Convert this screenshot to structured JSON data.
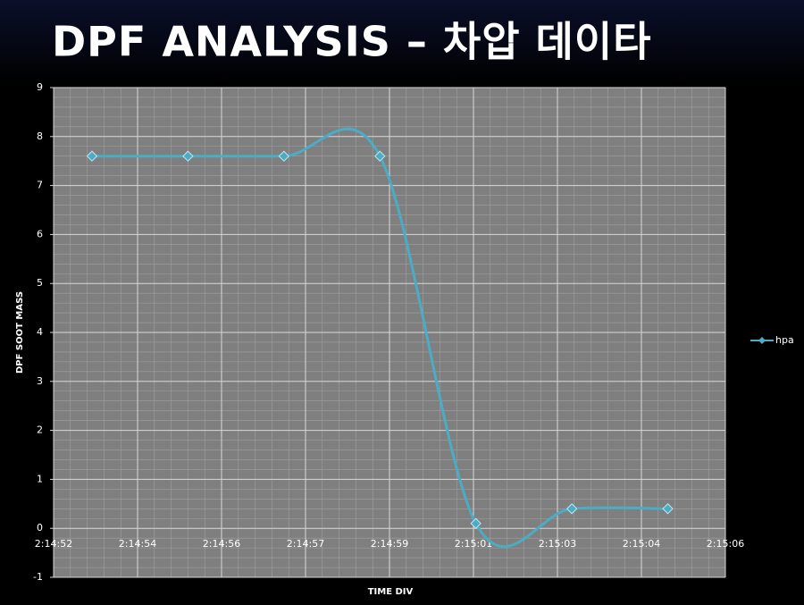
{
  "chart_data": {
    "type": "line",
    "title": "DPF ANALYSIS – 차압 데이타",
    "x_label": "TIME DIV",
    "y_label": "DPF SOOT MASS",
    "x": [
      52.8,
      54.8,
      56.8,
      58.8,
      60.8,
      62.8,
      64.8
    ],
    "series": [
      {
        "name": "hpa",
        "color": "#4bacc6",
        "values": [
          7.6,
          7.6,
          7.6,
          7.6,
          0.1,
          0.4,
          0.4
        ]
      }
    ],
    "xlim": [
      52,
      66
    ],
    "xticks": [
      {
        "value": 52,
        "label": "2:14:52"
      },
      {
        "value": 53.75,
        "label": "2:14:54"
      },
      {
        "value": 55.5,
        "label": "2:14:56"
      },
      {
        "value": 57.25,
        "label": "2:14:57"
      },
      {
        "value": 59,
        "label": "2:14:59"
      },
      {
        "value": 60.75,
        "label": "2:15:01"
      },
      {
        "value": 62.5,
        "label": "2:15:03"
      },
      {
        "value": 64.25,
        "label": "2:15:04"
      },
      {
        "value": 66,
        "label": "2:15:06"
      }
    ],
    "ylim": [
      -1,
      9
    ],
    "yticks": [
      -1,
      0,
      1,
      2,
      3,
      4,
      5,
      6,
      7,
      8,
      9
    ],
    "grid": true,
    "minor_grid": true,
    "smooth": true,
    "legend": "right"
  }
}
